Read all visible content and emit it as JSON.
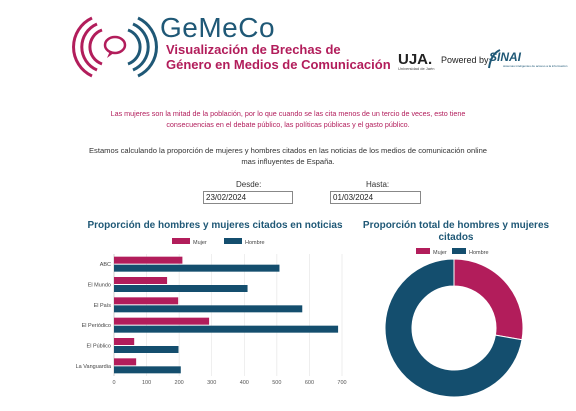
{
  "header": {
    "brand_title": "GeMeCo",
    "subtitle_line1": "Visualización de Brechas de",
    "subtitle_line2": "Género en Medios de Comunicación",
    "uja_logo_text": "UJA.",
    "uja_logo_sub": "Universidad de Jaén",
    "powered_by": "Powered by",
    "sinai_logo_text": "SINAI",
    "sinai_logo_sub": "sistemas inteligentes de acceso a la información"
  },
  "intro_text": "Las mujeres son la mitad de la población, por lo que cuando se las cita menos de un tercio de veces, esto tiene consecuencias en el debate público, las políticas públicas y el gasto público.",
  "description": "Estamos calculando la proporción de mujeres y hombres citados en las noticias de los medios de comunicación online mas influyentes de España.",
  "filters": {
    "from_label": "Desde:",
    "from_value": "23/02/2024",
    "to_label": "Hasta:",
    "to_value": "01/03/2024"
  },
  "colors": {
    "mujer": "#b21d5b",
    "hombre": "#144e6e"
  },
  "chart_data": [
    {
      "type": "bar",
      "orientation": "horizontal",
      "title": "Proporción de hombres y mujeres citados en noticias",
      "legend_position": "top",
      "categories": [
        "ABC",
        "El Mundo",
        "El País",
        "El Periódico",
        "El Público",
        "La Vanguardia"
      ],
      "series": [
        {
          "name": "Mujer",
          "color": "#b21d5b",
          "values": [
            210,
            163,
            197,
            292,
            62,
            68
          ]
        },
        {
          "name": "Hombre",
          "color": "#144e6e",
          "values": [
            508,
            410,
            578,
            688,
            198,
            205
          ]
        }
      ],
      "xlim": [
        0,
        700
      ],
      "xticks": [
        0,
        100,
        200,
        300,
        400,
        500,
        600,
        700
      ],
      "grid": true
    },
    {
      "type": "pie",
      "variant": "donut",
      "title": "Proporción total de hombres y mujeres citados",
      "legend_position": "top",
      "labels": [
        "Mujer",
        "Hombre"
      ],
      "values": [
        992,
        2587
      ],
      "colors": [
        "#b21d5b",
        "#144e6e"
      ]
    }
  ]
}
